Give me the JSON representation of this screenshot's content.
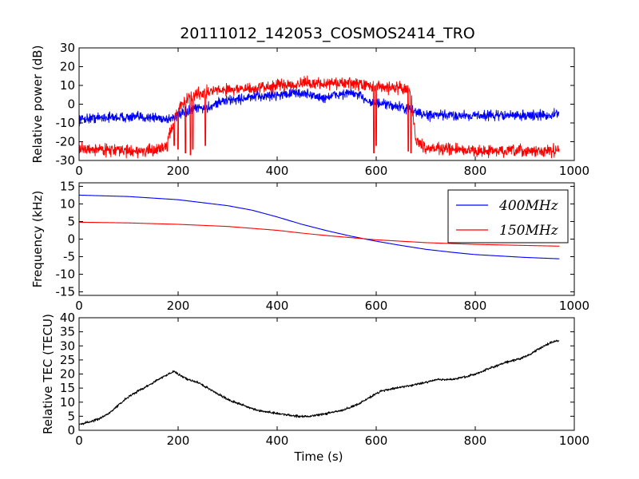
{
  "title": "20111012_142053_COSMOS2414_TRO",
  "chart_data": [
    {
      "type": "line",
      "ylabel": "Relative power (dB)",
      "xlim": [
        0,
        1000
      ],
      "ylim": [
        -30,
        30
      ],
      "xticks": [
        0,
        200,
        400,
        600,
        800,
        1000
      ],
      "yticks": [
        -30,
        -20,
        -10,
        0,
        10,
        20,
        30
      ],
      "series": [
        {
          "color": "#0000ff",
          "noise": 2.2,
          "x": [
            0,
            50,
            100,
            150,
            180,
            200,
            220,
            240,
            260,
            280,
            300,
            330,
            360,
            400,
            440,
            470,
            490,
            520,
            550,
            570,
            590,
            610,
            640,
            670,
            700,
            750,
            800,
            850,
            900,
            950,
            970
          ],
          "y": [
            -8,
            -7,
            -7,
            -7,
            -8,
            -6,
            -4,
            -2,
            -2,
            1,
            2,
            3,
            4,
            5,
            6,
            5,
            3,
            5,
            6,
            4,
            1,
            0,
            -1,
            -3,
            -6,
            -6,
            -6,
            -6,
            -6,
            -6,
            -5
          ]
        },
        {
          "color": "#ff0000",
          "noise": 2.6,
          "x": [
            0,
            50,
            100,
            150,
            175,
            190,
            205,
            220,
            240,
            270,
            300,
            350,
            400,
            450,
            500,
            550,
            580,
            600,
            620,
            650,
            670,
            680,
            700,
            750,
            800,
            850,
            900,
            950,
            970
          ],
          "y": [
            -24,
            -24,
            -25,
            -25,
            -22,
            -10,
            0,
            3,
            6,
            7,
            8,
            8,
            10,
            11,
            11,
            11,
            10,
            9,
            9,
            9,
            7,
            -20,
            -23,
            -24,
            -25,
            -25,
            -25,
            -25,
            -24
          ],
          "drops": [
            [
              178,
              -25
            ],
            [
              192,
              -22
            ],
            [
              200,
              -24
            ],
            [
              215,
              -26
            ],
            [
              225,
              -27
            ],
            [
              230,
              -24
            ],
            [
              255,
              -22
            ],
            [
              595,
              -26
            ],
            [
              600,
              -22
            ],
            [
              665,
              -25
            ],
            [
              670,
              -26
            ],
            [
              955,
              -25
            ],
            [
              965,
              -25
            ]
          ]
        }
      ]
    },
    {
      "type": "line",
      "ylabel": "Frequency (kHz)",
      "xlim": [
        0,
        1000
      ],
      "ylim": [
        -16,
        16
      ],
      "xticks": [
        0,
        200,
        400,
        600,
        800,
        1000
      ],
      "yticks": [
        -15,
        -10,
        -5,
        0,
        5,
        10,
        15
      ],
      "legend_position": "upper right",
      "series": [
        {
          "name": "400MHz",
          "color": "#0000ff",
          "x": [
            0,
            100,
            200,
            300,
            350,
            400,
            450,
            500,
            550,
            600,
            650,
            700,
            750,
            800,
            900,
            970
          ],
          "y": [
            12.5,
            12.1,
            11.2,
            9.5,
            8.2,
            6.3,
            4.2,
            2.4,
            0.8,
            -0.6,
            -1.8,
            -2.9,
            -3.7,
            -4.4,
            -5.2,
            -5.6
          ]
        },
        {
          "name": "150MHz",
          "color": "#ff0000",
          "x": [
            0,
            100,
            200,
            300,
            400,
            450,
            500,
            550,
            600,
            650,
            700,
            800,
            900,
            970
          ],
          "y": [
            4.8,
            4.6,
            4.2,
            3.6,
            2.5,
            1.7,
            1.0,
            0.4,
            -0.2,
            -0.6,
            -1.0,
            -1.5,
            -1.8,
            -2.0
          ]
        }
      ]
    },
    {
      "type": "line",
      "xlabel": "Time (s)",
      "ylabel": "Relative TEC (TECU)",
      "xlim": [
        0,
        1000
      ],
      "ylim": [
        0,
        40
      ],
      "xticks": [
        0,
        200,
        400,
        600,
        800,
        1000
      ],
      "yticks": [
        0,
        5,
        10,
        15,
        20,
        25,
        30,
        35,
        40
      ],
      "series": [
        {
          "color": "#000000",
          "noise": 0.35,
          "x": [
            0,
            20,
            40,
            60,
            80,
            100,
            120,
            140,
            160,
            180,
            190,
            200,
            220,
            240,
            260,
            280,
            300,
            330,
            360,
            400,
            440,
            470,
            500,
            530,
            560,
            590,
            610,
            640,
            670,
            700,
            720,
            750,
            780,
            800,
            830,
            860,
            880,
            900,
            920,
            950,
            970
          ],
          "y": [
            2,
            3,
            4,
            6,
            9,
            12,
            14,
            16,
            18,
            20,
            21,
            20,
            18,
            17,
            15,
            13,
            11,
            9,
            7,
            6,
            5,
            5,
            6,
            7,
            9,
            12,
            14,
            15,
            16,
            17,
            18,
            18,
            19,
            20,
            22,
            24,
            25,
            26,
            28,
            31,
            32
          ]
        }
      ]
    }
  ]
}
